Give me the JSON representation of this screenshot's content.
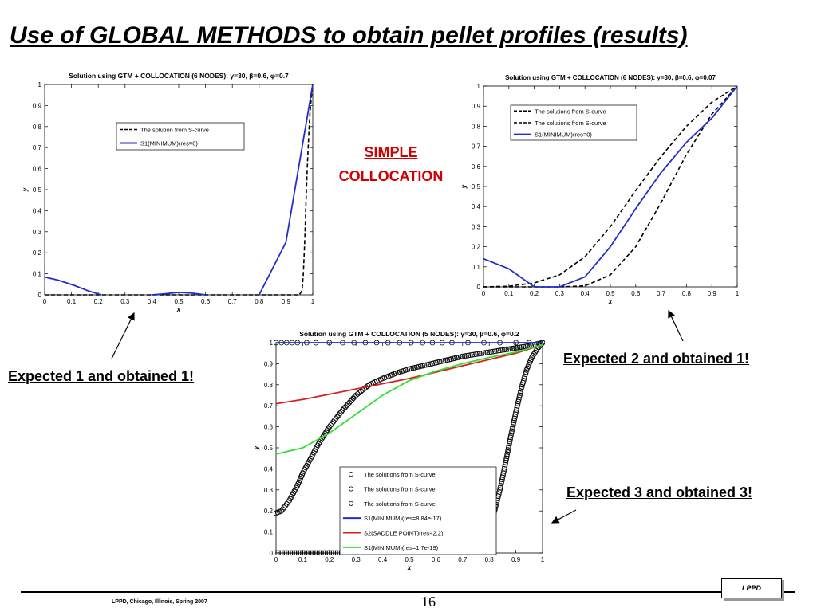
{
  "slide": {
    "title": "Use of GLOBAL METHODS to obtain pellet profiles (results)",
    "simple_label": [
      "SIMPLE",
      "COLLOCATION"
    ],
    "annotations": {
      "left": "Expected 1 and obtained 1!",
      "right_top": "Expected 2 and obtained 1!",
      "right_bottom": "Expected 3 and obtained 3!"
    },
    "footer": "LPPD, Chicago, Illinois, Spring 2007",
    "page_number": "16",
    "logo": "LPPD"
  },
  "chart_data": [
    {
      "type": "line",
      "title": "Solution using GTM + COLLOCATION (6 NODES): γ=30, β=0.6, φ=0.7",
      "xlabel": "x",
      "ylabel": "y",
      "xlim": [
        0,
        1
      ],
      "ylim": [
        0,
        1
      ],
      "xticks": [
        "0",
        "0.1",
        "0.2",
        "0.3",
        "0.4",
        "0.5",
        "0.6",
        "0.7",
        "0.8",
        "0.9",
        "1"
      ],
      "yticks": [
        "0",
        "0.1",
        "0.2",
        "0.3",
        "0.4",
        "0.5",
        "0.6",
        "0.7",
        "0.8",
        "0.9",
        "1"
      ],
      "legend_position": "upper-middle",
      "series": [
        {
          "name": "The solution from S-curve",
          "style": "dashed",
          "color": "#000000",
          "points": [
            [
              0,
              0
            ],
            [
              0.95,
              0
            ],
            [
              0.96,
              0.02
            ],
            [
              0.965,
              0.1
            ],
            [
              0.97,
              0.25
            ],
            [
              0.975,
              0.45
            ],
            [
              0.98,
              0.62
            ],
            [
              0.985,
              0.76
            ],
            [
              0.99,
              0.87
            ],
            [
              0.995,
              0.94
            ],
            [
              1,
              1
            ]
          ]
        },
        {
          "name": "S1(MINIMUM)(res=0)",
          "style": "solid",
          "color": "#1f2fc8",
          "segments": [
            [
              [
                0,
                0.085
              ],
              [
                0.05,
                0.07
              ],
              [
                0.11,
                0.045
              ],
              [
                0.16,
                0.02
              ],
              [
                0.21,
                0.0
              ]
            ],
            [
              [
                0.4,
                0.0
              ],
              [
                0.45,
                0.005
              ],
              [
                0.5,
                0.012
              ],
              [
                0.55,
                0.008
              ],
              [
                0.6,
                0.0
              ]
            ],
            [
              [
                0.8,
                0.0
              ],
              [
                0.9,
                0.25
              ],
              [
                1,
                1
              ]
            ]
          ]
        }
      ]
    },
    {
      "type": "line",
      "title": "Solution using GTM + COLLOCATION (6 NODES): γ=30, β=0.6, φ=0.07",
      "xlabel": "x",
      "ylabel": "y",
      "xlim": [
        0,
        1
      ],
      "ylim": [
        0,
        1
      ],
      "xticks": [
        "0",
        "0.1",
        "0.2",
        "0.3",
        "0.4",
        "0.5",
        "0.6",
        "0.7",
        "0.8",
        "0.9",
        "1"
      ],
      "yticks": [
        "0",
        "0.1",
        "0.2",
        "0.3",
        "0.4",
        "0.5",
        "0.6",
        "0.7",
        "0.8",
        "0.9",
        "1"
      ],
      "legend_position": "upper-left",
      "series": [
        {
          "name": "The solutions from S-curve",
          "style": "dashed",
          "color": "#000000",
          "points": [
            [
              0,
              0
            ],
            [
              0.1,
              0.003
            ],
            [
              0.2,
              0.02
            ],
            [
              0.3,
              0.06
            ],
            [
              0.4,
              0.15
            ],
            [
              0.5,
              0.3
            ],
            [
              0.6,
              0.48
            ],
            [
              0.7,
              0.65
            ],
            [
              0.8,
              0.8
            ],
            [
              0.9,
              0.92
            ],
            [
              1,
              1
            ]
          ]
        },
        {
          "name": "The solutions from S-curve",
          "style": "dashed",
          "color": "#000000",
          "points": [
            [
              0,
              0
            ],
            [
              0.3,
              0
            ],
            [
              0.4,
              0.005
            ],
            [
              0.5,
              0.06
            ],
            [
              0.6,
              0.2
            ],
            [
              0.7,
              0.42
            ],
            [
              0.8,
              0.66
            ],
            [
              0.9,
              0.86
            ],
            [
              1,
              1
            ]
          ]
        },
        {
          "name": "S1(MINIMUM)(res=0)",
          "style": "solid",
          "color": "#1f2fc8",
          "points": [
            [
              0,
              0.14
            ],
            [
              0.1,
              0.09
            ],
            [
              0.2,
              0.0
            ],
            [
              0.3,
              0.0
            ],
            [
              0.4,
              0.05
            ],
            [
              0.5,
              0.2
            ],
            [
              0.6,
              0.39
            ],
            [
              0.7,
              0.57
            ],
            [
              0.8,
              0.72
            ],
            [
              0.9,
              0.84
            ],
            [
              1,
              1
            ]
          ]
        }
      ]
    },
    {
      "type": "line",
      "title": "Solution using GTM + COLLOCATION (5 NODES): γ=30, β=0.6, φ=0.2",
      "xlabel": "x",
      "ylabel": "y",
      "xlim": [
        0,
        1
      ],
      "ylim": [
        0,
        1
      ],
      "xticks": [
        "0",
        "0.1",
        "0.2",
        "0.3",
        "0.4",
        "0.5",
        "0.6",
        "0.7",
        "0.8",
        "0.9",
        "1"
      ],
      "yticks": [
        "0",
        "0.1",
        "0.2",
        "0.3",
        "0.4",
        "0.5",
        "0.6",
        "0.7",
        "0.8",
        "0.9",
        "1"
      ],
      "legend_position": "lower-middle",
      "series": [
        {
          "name": "The solutions from S-curve",
          "style": "markers",
          "color": "#000000",
          "points": [
            [
              0,
              1
            ],
            [
              0.02,
              1
            ],
            [
              0.04,
              1
            ],
            [
              0.06,
              1
            ],
            [
              0.08,
              1
            ],
            [
              0.15,
              1
            ],
            [
              0.25,
              1
            ],
            [
              0.42,
              1
            ],
            [
              0.55,
              1
            ],
            [
              0.66,
              1
            ],
            [
              0.72,
              1
            ],
            [
              0.78,
              1
            ],
            [
              0.84,
              1
            ],
            [
              0.9,
              1
            ],
            [
              0.95,
              1
            ],
            [
              1,
              1
            ]
          ]
        },
        {
          "name": "The solutions from S-curve",
          "style": "markers",
          "color": "#000000",
          "points": [
            [
              0,
              0.19
            ],
            [
              0.02,
              0.2
            ],
            [
              0.05,
              0.25
            ],
            [
              0.08,
              0.32
            ],
            [
              0.1,
              0.38
            ],
            [
              0.13,
              0.45
            ],
            [
              0.16,
              0.52
            ],
            [
              0.2,
              0.6
            ],
            [
              0.25,
              0.68
            ],
            [
              0.3,
              0.75
            ],
            [
              0.35,
              0.8
            ],
            [
              0.4,
              0.83
            ],
            [
              0.45,
              0.855
            ],
            [
              0.5,
              0.875
            ],
            [
              0.55,
              0.89
            ],
            [
              0.6,
              0.905
            ],
            [
              0.65,
              0.92
            ],
            [
              0.7,
              0.935
            ],
            [
              0.75,
              0.945
            ],
            [
              0.8,
              0.955
            ],
            [
              0.85,
              0.965
            ],
            [
              0.9,
              0.975
            ],
            [
              0.95,
              0.985
            ],
            [
              1,
              1
            ]
          ]
        },
        {
          "name": "The solutions from S-curve",
          "style": "markers",
          "color": "#000000",
          "points": [
            [
              0,
              0
            ],
            [
              0.1,
              0
            ],
            [
              0.2,
              0
            ],
            [
              0.3,
              0
            ],
            [
              0.4,
              0
            ],
            [
              0.5,
              0
            ],
            [
              0.6,
              0
            ],
            [
              0.7,
              0.003
            ],
            [
              0.73,
              0.01
            ],
            [
              0.76,
              0.03
            ],
            [
              0.78,
              0.06
            ],
            [
              0.8,
              0.12
            ],
            [
              0.82,
              0.2
            ],
            [
              0.84,
              0.3
            ],
            [
              0.86,
              0.42
            ],
            [
              0.88,
              0.55
            ],
            [
              0.9,
              0.67
            ],
            [
              0.92,
              0.78
            ],
            [
              0.94,
              0.87
            ],
            [
              0.96,
              0.93
            ],
            [
              0.98,
              0.97
            ],
            [
              1,
              1
            ]
          ]
        },
        {
          "name": "S1(MINIMUM)(res=8.84e-17)",
          "style": "solid",
          "color": "#1f2fc8",
          "points": [
            [
              0,
              1
            ],
            [
              1,
              1
            ]
          ]
        },
        {
          "name": "S2(SADDLE POINT)(res=2.2)",
          "style": "solid",
          "color": "#d42020",
          "points": [
            [
              0,
              0.71
            ],
            [
              0.1,
              0.73
            ],
            [
              0.2,
              0.755
            ],
            [
              0.3,
              0.78
            ],
            [
              0.4,
              0.805
            ],
            [
              0.5,
              0.83
            ],
            [
              0.6,
              0.86
            ],
            [
              0.7,
              0.89
            ],
            [
              0.8,
              0.92
            ],
            [
              0.9,
              0.95
            ],
            [
              1,
              0.99
            ]
          ]
        },
        {
          "name": "S1(MINIMUM)(res=1.7e-19)",
          "style": "solid",
          "color": "#33dd33",
          "points": [
            [
              0,
              0.47
            ],
            [
              0.1,
              0.5
            ],
            [
              0.2,
              0.57
            ],
            [
              0.3,
              0.66
            ],
            [
              0.4,
              0.75
            ],
            [
              0.5,
              0.82
            ],
            [
              0.6,
              0.865
            ],
            [
              0.7,
              0.9
            ],
            [
              0.8,
              0.93
            ],
            [
              0.9,
              0.955
            ],
            [
              1,
              0.99
            ]
          ]
        }
      ]
    }
  ]
}
